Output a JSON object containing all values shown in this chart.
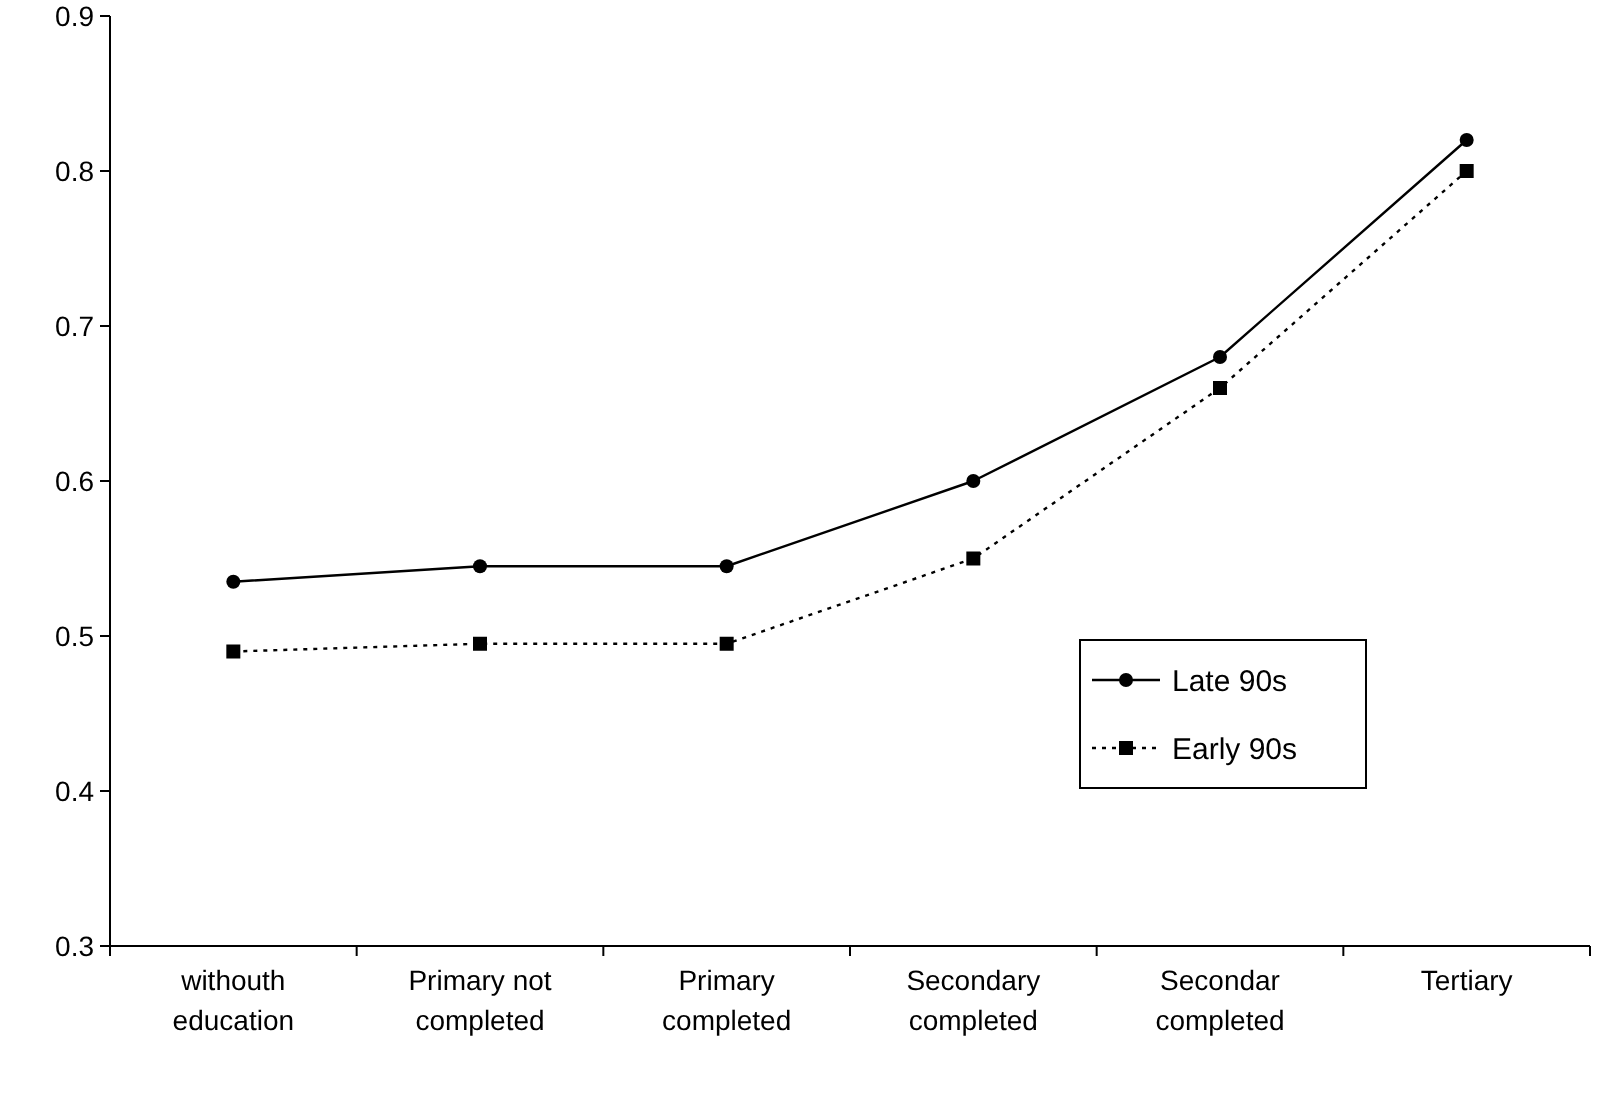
{
  "chart_data": {
    "type": "line",
    "categories": [
      "withouth education",
      "Primary not completed",
      "Primary completed",
      "Secondary completed",
      "Secondar completed",
      "Tertiary"
    ],
    "series": [
      {
        "name": "Late 90s",
        "color": "#000000",
        "marker": "circle",
        "line_style": "solid",
        "values": [
          0.535,
          0.545,
          0.545,
          0.6,
          0.68,
          0.82
        ]
      },
      {
        "name": "Early 90s",
        "color": "#000000",
        "marker": "square",
        "line_style": "dotted",
        "values": [
          0.49,
          0.495,
          0.495,
          0.55,
          0.66,
          0.8
        ]
      }
    ],
    "ylim": [
      0.3,
      0.9
    ],
    "yticks": [
      0.3,
      0.4,
      0.5,
      0.6,
      0.7,
      0.8,
      0.9
    ],
    "grid": false,
    "legend": "right"
  }
}
